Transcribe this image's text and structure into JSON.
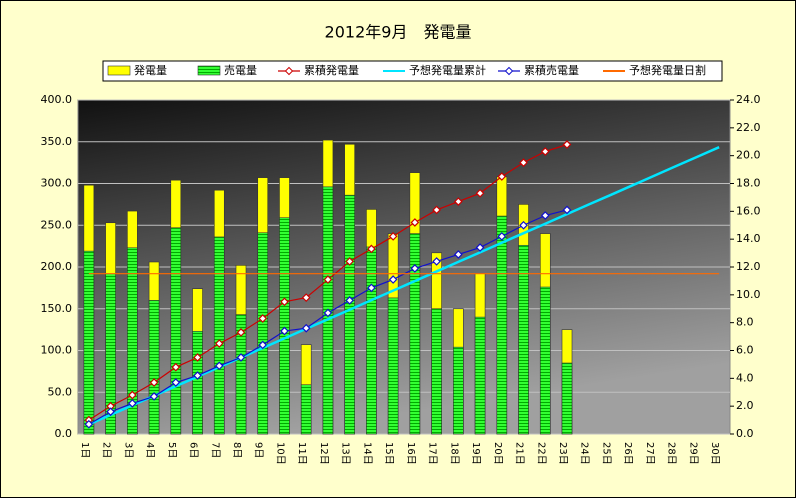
{
  "chart_data": {
    "type": "bar",
    "title": "2012年9月　発電量",
    "categories": [
      "1日",
      "2日",
      "3日",
      "4日",
      "5日",
      "6日",
      "7日",
      "8日",
      "9日",
      "10日",
      "11日",
      "12日",
      "13日",
      "14日",
      "15日",
      "16日",
      "17日",
      "18日",
      "19日",
      "20日",
      "21日",
      "22日",
      "23日",
      "24日",
      "25日",
      "26日",
      "27日",
      "28日",
      "29日",
      "30日"
    ],
    "series": [
      {
        "name": "発電量",
        "type": "bar",
        "color": "#ffff00",
        "values": [
          298,
          253,
          267,
          206,
          304,
          174,
          292,
          202,
          307,
          307,
          107,
          352,
          347,
          269,
          240,
          313,
          217,
          150,
          192,
          308,
          275,
          240,
          125,
          null,
          null,
          null,
          null,
          null,
          null,
          null
        ]
      },
      {
        "name": "売電量",
        "type": "bar",
        "color": "#00ee00",
        "values": [
          219,
          192,
          223,
          160,
          247,
          123,
          236,
          143,
          241,
          259,
          59,
          296,
          286,
          224,
          163,
          240,
          150,
          104,
          140,
          261,
          226,
          176,
          85,
          null,
          null,
          null,
          null,
          null,
          null,
          null
        ]
      },
      {
        "name": "累積発電量",
        "type": "line",
        "axis": "y2",
        "marker": "diamond",
        "color": "#cc0000",
        "values": [
          1.0,
          2.0,
          2.8,
          3.7,
          4.8,
          5.5,
          6.5,
          7.3,
          8.3,
          9.5,
          9.8,
          11.1,
          12.4,
          13.3,
          14.2,
          15.2,
          16.1,
          16.7,
          17.3,
          18.5,
          19.5,
          20.3,
          20.8,
          null,
          null,
          null,
          null,
          null,
          null,
          null
        ]
      },
      {
        "name": "予想発電量累計",
        "type": "line",
        "axis": "y2",
        "color": "#00e5ff",
        "values": [
          0.69,
          1.37,
          2.06,
          2.75,
          3.43,
          4.12,
          4.81,
          5.5,
          6.18,
          6.87,
          7.56,
          8.24,
          8.93,
          9.62,
          10.3,
          10.99,
          11.68,
          12.37,
          13.05,
          13.74,
          14.43,
          15.11,
          15.8,
          16.49,
          17.17,
          17.86,
          18.55,
          19.24,
          19.92,
          20.61
        ]
      },
      {
        "name": "累積売電量",
        "type": "line",
        "axis": "y2",
        "marker": "diamond",
        "color": "#1010cc",
        "values": [
          0.7,
          1.6,
          2.2,
          2.7,
          3.7,
          4.2,
          4.9,
          5.5,
          6.4,
          7.4,
          7.6,
          8.7,
          9.6,
          10.5,
          11.1,
          11.9,
          12.4,
          12.9,
          13.4,
          14.2,
          15.0,
          15.7,
          16.1,
          null,
          null,
          null,
          null,
          null,
          null,
          null
        ]
      },
      {
        "name": "予想発電量日割",
        "type": "line",
        "color": "#ff6a00",
        "values": [
          192,
          192,
          192,
          192,
          192,
          192,
          192,
          192,
          192,
          192,
          192,
          192,
          192,
          192,
          192,
          192,
          192,
          192,
          192,
          192,
          192,
          192,
          192,
          192,
          192,
          192,
          192,
          192,
          192,
          192
        ]
      }
    ],
    "ylim": [
      0,
      400
    ],
    "yticks": [
      {
        "value": 0,
        "label": "0.0"
      },
      {
        "value": 50,
        "label": "50.0"
      },
      {
        "value": 100,
        "label": "100.0"
      },
      {
        "value": 150,
        "label": "150.0"
      },
      {
        "value": 200,
        "label": "200.0"
      },
      {
        "value": 250,
        "label": "250.0"
      },
      {
        "value": 300,
        "label": "300.0"
      },
      {
        "value": 350,
        "label": "350.0"
      },
      {
        "value": 400,
        "label": "400.0"
      }
    ],
    "y2lim": [
      0,
      24
    ],
    "y2ticks": [
      {
        "value": 0,
        "label": "0.0"
      },
      {
        "value": 2,
        "label": "2.0"
      },
      {
        "value": 4,
        "label": "4.0"
      },
      {
        "value": 6,
        "label": "6.0"
      },
      {
        "value": 8,
        "label": "8.0"
      },
      {
        "value": 10,
        "label": "10.0"
      },
      {
        "value": 12,
        "label": "12.0"
      },
      {
        "value": 14,
        "label": "14.0"
      },
      {
        "value": 16,
        "label": "16.0"
      },
      {
        "value": 18,
        "label": "18.0"
      },
      {
        "value": 20,
        "label": "20.0"
      },
      {
        "value": 22,
        "label": "22.0"
      },
      {
        "value": 24,
        "label": "24.0"
      }
    ],
    "grid": true,
    "legend": "top"
  }
}
